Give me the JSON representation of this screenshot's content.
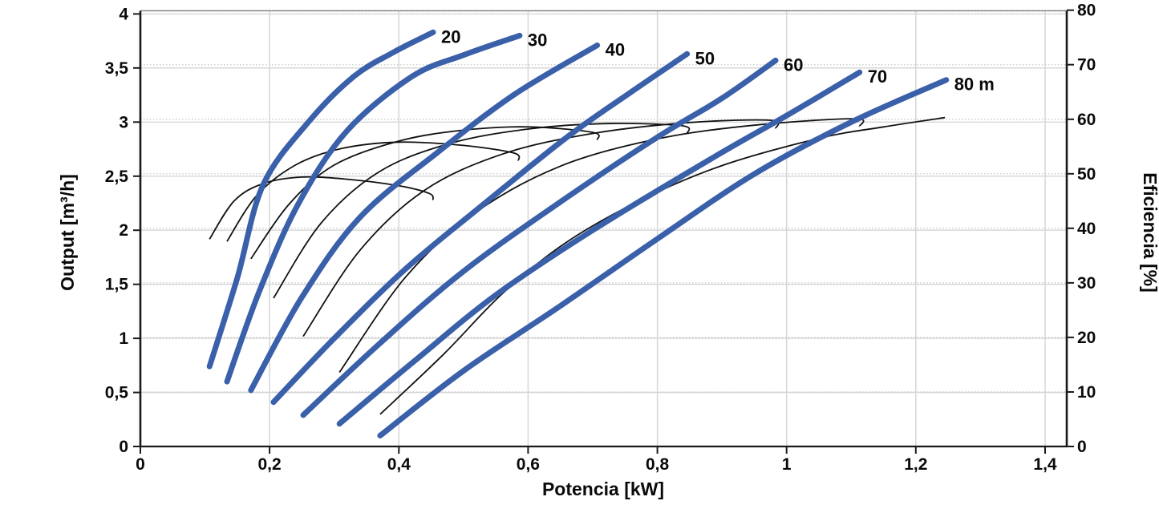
{
  "colors": {
    "head_curve": "#3a60aa",
    "efficiency_curve": "#111111",
    "grid_solid": "#d6d6d6",
    "grid_dotted": "#cfcfcf",
    "spine": "#1a1a1a",
    "top_spine": "#8a8a8a",
    "text": "#0a0a0a",
    "background": "#ffffff"
  },
  "chart_data": {
    "type": "line",
    "title": "",
    "xlabel": "Potencia [kW]",
    "ylabel_left": "Output [m³/h]",
    "ylabel_right": "Eficiencia [%]",
    "xlim": [
      0,
      1.433
    ],
    "ylim_left": [
      0,
      4.02
    ],
    "ylim_right": [
      0,
      80.2
    ],
    "grid": "solid horizontal+vertical for left/bottom axes, dotted horizontal for right axis",
    "legend_position": "none",
    "x_ticks": [
      {
        "v": 0,
        "label": "0"
      },
      {
        "v": 0.2,
        "label": "0,2"
      },
      {
        "v": 0.4,
        "label": "0,4"
      },
      {
        "v": 0.6,
        "label": "0,6"
      },
      {
        "v": 0.8,
        "label": "0,8"
      },
      {
        "v": 1.0,
        "label": "1"
      },
      {
        "v": 1.2,
        "label": "1,2"
      },
      {
        "v": 1.4,
        "label": "1,4"
      }
    ],
    "y_left_ticks": [
      {
        "v": 0,
        "label": "0"
      },
      {
        "v": 0.5,
        "label": "0,5"
      },
      {
        "v": 1,
        "label": "1"
      },
      {
        "v": 1.5,
        "label": "1,5"
      },
      {
        "v": 2,
        "label": "2"
      },
      {
        "v": 2.5,
        "label": "2,5"
      },
      {
        "v": 3,
        "label": "3"
      },
      {
        "v": 3.5,
        "label": "3,5"
      },
      {
        "v": 4,
        "label": "4"
      }
    ],
    "y_right_ticks": [
      {
        "v": 0,
        "label": "0"
      },
      {
        "v": 10,
        "label": "10"
      },
      {
        "v": 20,
        "label": "20"
      },
      {
        "v": 30,
        "label": "30"
      },
      {
        "v": 40,
        "label": "40"
      },
      {
        "v": 50,
        "label": "50"
      },
      {
        "v": 60,
        "label": "60"
      },
      {
        "v": 70,
        "label": "70"
      },
      {
        "v": 80,
        "label": "80"
      }
    ],
    "head_curves": [
      {
        "name": "head-20",
        "label": "20",
        "points": [
          [
            0.107,
            0.74
          ],
          [
            0.15,
            1.56
          ],
          [
            0.19,
            2.42
          ],
          [
            0.26,
            3.0
          ],
          [
            0.33,
            3.42
          ],
          [
            0.39,
            3.64
          ],
          [
            0.453,
            3.83
          ]
        ]
      },
      {
        "name": "head-30",
        "label": "30",
        "points": [
          [
            0.134,
            0.6
          ],
          [
            0.185,
            1.45
          ],
          [
            0.245,
            2.25
          ],
          [
            0.32,
            2.92
          ],
          [
            0.42,
            3.42
          ],
          [
            0.5,
            3.62
          ],
          [
            0.587,
            3.8
          ]
        ]
      },
      {
        "name": "head-40",
        "label": "40",
        "points": [
          [
            0.171,
            0.52
          ],
          [
            0.25,
            1.38
          ],
          [
            0.34,
            2.12
          ],
          [
            0.46,
            2.72
          ],
          [
            0.58,
            3.26
          ],
          [
            0.707,
            3.71
          ]
        ]
      },
      {
        "name": "head-50",
        "label": "50",
        "points": [
          [
            0.206,
            0.41
          ],
          [
            0.3,
            1.0
          ],
          [
            0.41,
            1.64
          ],
          [
            0.527,
            2.22
          ],
          [
            0.66,
            2.86
          ],
          [
            0.76,
            3.28
          ],
          [
            0.846,
            3.63
          ]
        ]
      },
      {
        "name": "head-60",
        "label": "60",
        "points": [
          [
            0.252,
            0.29
          ],
          [
            0.37,
            0.95
          ],
          [
            0.5,
            1.62
          ],
          [
            0.652,
            2.27
          ],
          [
            0.8,
            2.86
          ],
          [
            0.9,
            3.22
          ],
          [
            0.983,
            3.57
          ]
        ]
      },
      {
        "name": "head-70",
        "label": "70",
        "points": [
          [
            0.308,
            0.21
          ],
          [
            0.43,
            0.82
          ],
          [
            0.55,
            1.4
          ],
          [
            0.7,
            2.0
          ],
          [
            0.883,
            2.66
          ],
          [
            1.0,
            3.06
          ],
          [
            1.113,
            3.46
          ]
        ]
      },
      {
        "name": "head-80",
        "label": "80 m",
        "points": [
          [
            0.371,
            0.1
          ],
          [
            0.5,
            0.7
          ],
          [
            0.65,
            1.3
          ],
          [
            0.8,
            1.92
          ],
          [
            0.95,
            2.52
          ],
          [
            1.1,
            3.0
          ],
          [
            1.247,
            3.39
          ]
        ]
      }
    ],
    "efficiency_curves": [
      {
        "name": "efficiency-20",
        "points": [
          [
            0.107,
            38
          ],
          [
            0.145,
            45
          ],
          [
            0.19,
            48.2
          ],
          [
            0.25,
            49.4
          ],
          [
            0.32,
            49
          ],
          [
            0.4,
            47.8
          ],
          [
            0.447,
            46.4
          ],
          [
            0.453,
            45.2
          ]
        ]
      },
      {
        "name": "efficiency-30",
        "points": [
          [
            0.134,
            37.6
          ],
          [
            0.18,
            46
          ],
          [
            0.24,
            51.6
          ],
          [
            0.31,
            54.6
          ],
          [
            0.4,
            55.8
          ],
          [
            0.5,
            55.2
          ],
          [
            0.578,
            53.8
          ],
          [
            0.585,
            52.4
          ]
        ]
      },
      {
        "name": "efficiency-40",
        "points": [
          [
            0.171,
            34.4
          ],
          [
            0.23,
            44.4
          ],
          [
            0.3,
            51.6
          ],
          [
            0.4,
            56
          ],
          [
            0.5,
            58
          ],
          [
            0.6,
            58.6
          ],
          [
            0.7,
            57.6
          ],
          [
            0.707,
            56.2
          ]
        ]
      },
      {
        "name": "efficiency-50",
        "points": [
          [
            0.206,
            27.2
          ],
          [
            0.28,
            41
          ],
          [
            0.37,
            50.4
          ],
          [
            0.48,
            55.6
          ],
          [
            0.6,
            58.2
          ],
          [
            0.72,
            59.2
          ],
          [
            0.838,
            58.8
          ],
          [
            0.846,
            57.4
          ]
        ]
      },
      {
        "name": "efficiency-60",
        "points": [
          [
            0.252,
            20.2
          ],
          [
            0.34,
            36
          ],
          [
            0.44,
            47
          ],
          [
            0.56,
            53.6
          ],
          [
            0.7,
            57.4
          ],
          [
            0.85,
            59.4
          ],
          [
            0.976,
            59.8
          ],
          [
            0.983,
            58.3
          ]
        ]
      },
      {
        "name": "efficiency-70",
        "points": [
          [
            0.308,
            13.6
          ],
          [
            0.41,
            31
          ],
          [
            0.52,
            43
          ],
          [
            0.65,
            51.4
          ],
          [
            0.8,
            56.4
          ],
          [
            0.95,
            58.9
          ],
          [
            1.105,
            60.1
          ],
          [
            1.113,
            58.7
          ]
        ]
      },
      {
        "name": "efficiency-80",
        "points": [
          [
            0.371,
            5.9
          ],
          [
            0.47,
            17
          ],
          [
            0.56,
            28
          ],
          [
            0.66,
            37.5
          ],
          [
            0.78,
            45.5
          ],
          [
            0.9,
            51.5
          ],
          [
            1.05,
            56.5
          ],
          [
            1.15,
            58.6
          ],
          [
            1.245,
            60.3
          ]
        ]
      }
    ]
  }
}
